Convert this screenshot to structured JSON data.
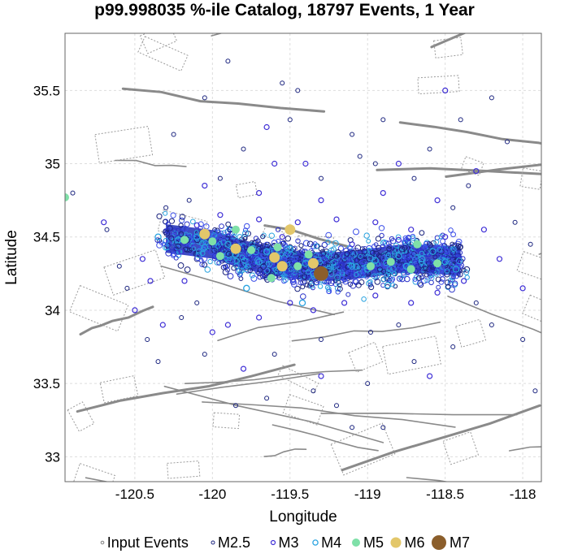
{
  "chart_data": {
    "type": "scatter",
    "title": "p99.998035 %-ile Catalog, 18797 Events, 1 Year",
    "xlabel": "Longitude",
    "ylabel": "Latitude",
    "xlim": [
      -120.95,
      -117.88
    ],
    "ylim": [
      32.83,
      35.89
    ],
    "x_ticks": [
      -120.5,
      -120,
      -119.5,
      -119,
      -118.5,
      -118
    ],
    "x_tick_labels": [
      "-120.5",
      "-120",
      "-119.5",
      "-119",
      "-118.5",
      "-118"
    ],
    "y_ticks": [
      33,
      33.5,
      34,
      34.5,
      35,
      35.5
    ],
    "y_tick_labels": [
      "33",
      "33.5",
      "34",
      "34.5",
      "35",
      "35.5"
    ],
    "grid": true,
    "legend_position": "bottom",
    "cluster": {
      "spine": [
        [
          -120.3,
          34.49
        ],
        [
          -120.0,
          34.45
        ],
        [
          -119.8,
          34.38
        ],
        [
          -119.6,
          34.33
        ],
        [
          -119.4,
          34.3
        ],
        [
          -119.2,
          34.3
        ],
        [
          -119.0,
          34.32
        ],
        [
          -118.8,
          34.35
        ],
        [
          -118.6,
          34.35
        ],
        [
          -118.4,
          34.33
        ]
      ],
      "half_width_deg": 0.13
    },
    "series": [
      {
        "name": "Input Events",
        "color": "#808080",
        "marker": "small-open-circle",
        "points": []
      },
      {
        "name": "M2.5",
        "color": "#1a237e",
        "marker": "open-circle",
        "points": [
          [
            -120.9,
            34.8
          ],
          [
            -120.68,
            34.55
          ],
          [
            -120.6,
            34.3
          ],
          [
            -120.55,
            34.15
          ],
          [
            -120.42,
            33.8
          ],
          [
            -120.35,
            33.65
          ],
          [
            -120.2,
            33.95
          ],
          [
            -120.1,
            34.05
          ],
          [
            -120.25,
            35.2
          ],
          [
            -120.05,
            35.45
          ],
          [
            -119.95,
            34.9
          ],
          [
            -119.8,
            35.1
          ],
          [
            -119.5,
            35.3
          ],
          [
            -119.45,
            35.5
          ],
          [
            -119.3,
            34.9
          ],
          [
            -119.05,
            35.05
          ],
          [
            -118.95,
            35.0
          ],
          [
            -118.7,
            34.9
          ],
          [
            -118.6,
            35.1
          ],
          [
            -118.45,
            34.7
          ],
          [
            -118.35,
            34.85
          ],
          [
            -118.1,
            35.15
          ],
          [
            -118.05,
            34.6
          ],
          [
            -117.95,
            34.45
          ],
          [
            -118.2,
            33.9
          ],
          [
            -118.45,
            33.75
          ],
          [
            -118.7,
            33.65
          ],
          [
            -119.0,
            33.5
          ],
          [
            -119.2,
            33.35
          ],
          [
            -119.35,
            33.45
          ],
          [
            -119.65,
            33.4
          ],
          [
            -119.85,
            33.35
          ],
          [
            -119.6,
            33.7
          ],
          [
            -119.3,
            33.8
          ],
          [
            -118.98,
            33.85
          ],
          [
            -118.8,
            33.9
          ],
          [
            -118.3,
            34.05
          ],
          [
            -118.0,
            33.8
          ],
          [
            -117.92,
            33.45
          ],
          [
            -118.9,
            33.2
          ],
          [
            -119.1,
            33.2
          ],
          [
            -120.05,
            33.7
          ],
          [
            -119.9,
            35.7
          ],
          [
            -119.55,
            35.55
          ],
          [
            -118.4,
            35.3
          ],
          [
            -118.2,
            35.45
          ],
          [
            -118.9,
            35.3
          ],
          [
            -119.1,
            35.2
          ],
          [
            -120.3,
            34.7
          ],
          [
            -120.15,
            34.75
          ]
        ]
      },
      {
        "name": "M3",
        "color": "#3f2fd6",
        "marker": "open-circle",
        "points": [
          [
            -120.7,
            34.6
          ],
          [
            -120.5,
            34.0
          ],
          [
            -120.32,
            33.9
          ],
          [
            -120.18,
            34.2
          ],
          [
            -119.9,
            33.9
          ],
          [
            -119.7,
            33.95
          ],
          [
            -119.5,
            34.05
          ],
          [
            -119.35,
            34.0
          ],
          [
            -119.15,
            34.05
          ],
          [
            -118.95,
            34.1
          ],
          [
            -118.72,
            34.05
          ],
          [
            -118.55,
            34.12
          ],
          [
            -118.38,
            34.2
          ],
          [
            -118.5,
            34.5
          ],
          [
            -118.72,
            34.55
          ],
          [
            -118.95,
            34.6
          ],
          [
            -119.2,
            34.62
          ],
          [
            -119.45,
            34.6
          ],
          [
            -119.7,
            34.62
          ],
          [
            -119.95,
            34.65
          ],
          [
            -120.1,
            34.58
          ],
          [
            -120.05,
            34.85
          ],
          [
            -119.7,
            34.8
          ],
          [
            -119.3,
            34.75
          ],
          [
            -118.9,
            34.8
          ],
          [
            -118.55,
            34.75
          ],
          [
            -118.25,
            34.55
          ],
          [
            -118.15,
            34.35
          ],
          [
            -118.0,
            34.15
          ],
          [
            -118.6,
            33.55
          ],
          [
            -119.3,
            33.55
          ],
          [
            -119.8,
            33.6
          ],
          [
            -120.0,
            33.85
          ],
          [
            -118.8,
            35.0
          ],
          [
            -119.4,
            35.0
          ],
          [
            -119.65,
            35.25
          ],
          [
            -118.5,
            35.5
          ],
          [
            -118.3,
            34.95
          ],
          [
            -120.45,
            34.35
          ],
          [
            -120.4,
            34.2
          ],
          [
            -119.6,
            35.0
          ],
          [
            -119.1,
            34.45
          ],
          [
            -118.8,
            34.48
          ],
          [
            -119.55,
            34.5
          ],
          [
            -120.2,
            34.4
          ]
        ]
      },
      {
        "name": "M4",
        "color": "#29a3e0",
        "marker": "open-circle",
        "points": [
          [
            -120.22,
            34.48
          ],
          [
            -120.05,
            34.43
          ],
          [
            -119.85,
            34.38
          ],
          [
            -119.7,
            34.33
          ],
          [
            -119.55,
            34.3
          ],
          [
            -119.4,
            34.32
          ],
          [
            -119.25,
            34.28
          ],
          [
            -119.1,
            34.3
          ],
          [
            -118.95,
            34.34
          ],
          [
            -118.8,
            34.37
          ],
          [
            -118.65,
            34.35
          ],
          [
            -118.5,
            34.33
          ],
          [
            -119.9,
            34.45
          ],
          [
            -119.65,
            34.4
          ],
          [
            -119.35,
            34.25
          ],
          [
            -118.75,
            34.3
          ],
          [
            -119.0,
            34.28
          ],
          [
            -119.5,
            34.42
          ],
          [
            -120.1,
            34.5
          ],
          [
            -118.58,
            34.4
          ],
          [
            -118.87,
            34.17
          ],
          [
            -119.42,
            34.05
          ],
          [
            -120.35,
            34.5
          ],
          [
            -119.78,
            34.15
          ],
          [
            -118.43,
            34.28
          ]
        ]
      },
      {
        "name": "M5",
        "color": "#7fe0a8",
        "marker": "filled-circle",
        "points": [
          [
            -120.0,
            34.47
          ],
          [
            -119.75,
            34.41
          ],
          [
            -119.58,
            34.43
          ],
          [
            -119.45,
            34.3
          ],
          [
            -119.62,
            34.22
          ],
          [
            -119.3,
            34.27
          ],
          [
            -118.98,
            34.3
          ],
          [
            -118.85,
            34.33
          ],
          [
            -118.68,
            34.45
          ],
          [
            -118.55,
            34.32
          ],
          [
            -120.18,
            34.48
          ],
          [
            -119.95,
            34.37
          ],
          [
            -119.85,
            34.55
          ],
          [
            -119.38,
            34.38
          ],
          [
            -118.72,
            34.28
          ],
          [
            -120.95,
            34.77
          ]
        ]
      },
      {
        "name": "M6",
        "color": "#e3c76a",
        "marker": "filled-circle",
        "points": [
          [
            -120.05,
            34.52
          ],
          [
            -119.85,
            34.42
          ],
          [
            -119.6,
            34.36
          ],
          [
            -119.55,
            34.3
          ],
          [
            -119.35,
            34.32
          ],
          [
            -119.5,
            34.55
          ]
        ]
      },
      {
        "name": "M7",
        "color": "#8b5e2b",
        "marker": "filled-circle",
        "points": [
          [
            -119.3,
            34.25
          ]
        ]
      }
    ]
  }
}
